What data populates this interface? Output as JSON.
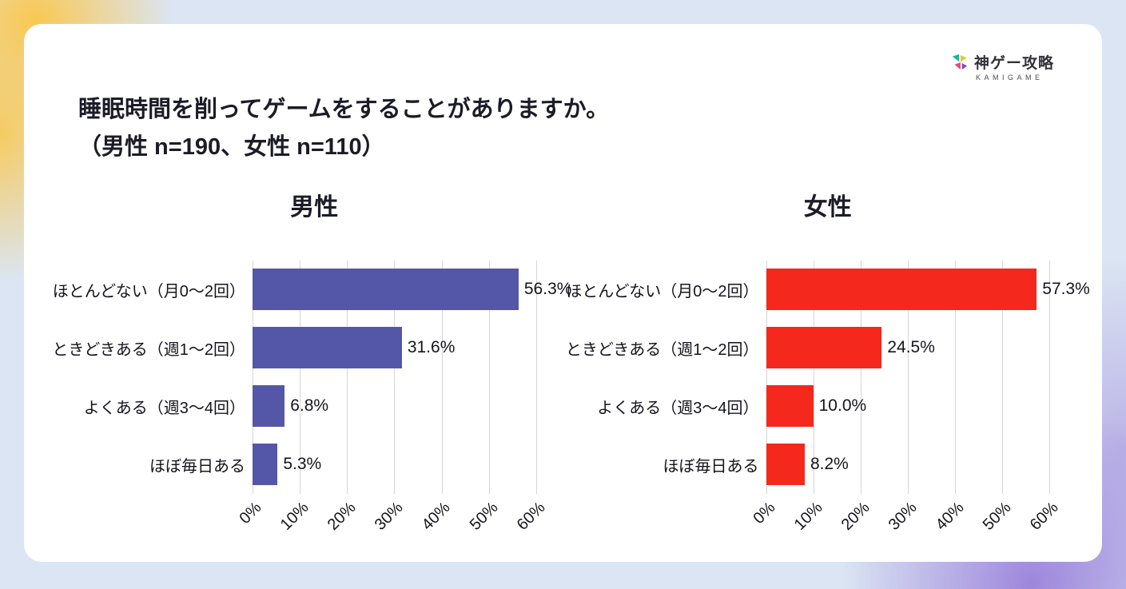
{
  "logo": {
    "name": "神ゲー攻略",
    "subtext": "KAMIGAME"
  },
  "title": {
    "line1": "睡眠時間を削ってゲームをすることがありますか。",
    "line2": "（男性 n=190、女性 n=110）"
  },
  "colors": {
    "male_bar": "#5457a8",
    "female_bar": "#f4281c",
    "background": "#dbe5f3",
    "card": "#ffffff",
    "accent_yellow": "#fbc74a",
    "accent_purple": "#9376d8",
    "gridline": "#d6d6d9"
  },
  "chart_data": [
    {
      "type": "bar",
      "orientation": "horizontal",
      "title": "男性",
      "n_label": "n=190",
      "categories": [
        "ほとんどない（月0〜2回）",
        "ときどきある（週1〜2回）",
        "よくある（週3〜4回）",
        "ほぼ毎日ある"
      ],
      "values": [
        56.3,
        31.6,
        6.8,
        5.3
      ],
      "value_labels": [
        "56.3%",
        "31.6%",
        "6.8%",
        "5.3%"
      ],
      "x_ticks": [
        "0%",
        "10%",
        "20%",
        "30%",
        "40%",
        "50%",
        "60%"
      ],
      "xlim": [
        0,
        60
      ],
      "grid": true,
      "bar_color": "#5457a8"
    },
    {
      "type": "bar",
      "orientation": "horizontal",
      "title": "女性",
      "n_label": "n=110",
      "categories": [
        "ほとんどない（月0〜2回）",
        "ときどきある（週1〜2回）",
        "よくある（週3〜4回）",
        "ほぼ毎日ある"
      ],
      "values": [
        57.3,
        24.5,
        10.0,
        8.2
      ],
      "value_labels": [
        "57.3%",
        "24.5%",
        "10.0%",
        "8.2%"
      ],
      "x_ticks": [
        "0%",
        "10%",
        "20%",
        "30%",
        "40%",
        "50%",
        "60%"
      ],
      "xlim": [
        0,
        60
      ],
      "grid": true,
      "bar_color": "#f4281c"
    }
  ]
}
